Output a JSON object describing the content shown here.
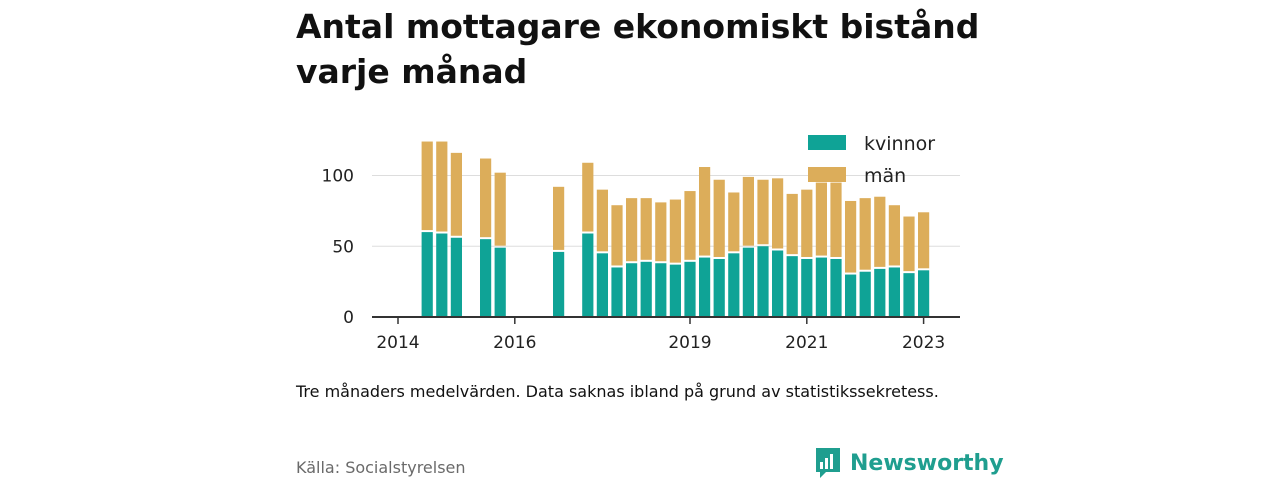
{
  "title": "Antal mottagare ekonomiskt bistånd varje månad",
  "note": "Tre månaders medelvärden. Data saknas ibland på grund av statistikssekretess.",
  "source": "Källa: Socialstyrelsen",
  "brand": "Newsworthy",
  "colors": {
    "kvinnor": "#0fa396",
    "man": "#dcad5a",
    "axis": "#333333",
    "grid": "#dddddd",
    "brand": "#1f9e8f"
  },
  "icons": {
    "brand_logo": "bar-chart-speech-bubble-icon"
  },
  "chart_data": {
    "type": "bar",
    "stacked": true,
    "x_tick_labels": [
      "2014",
      "2016",
      "2019",
      "2021",
      "2023"
    ],
    "y_tick_labels": [
      "0",
      "50",
      "100"
    ],
    "ylim": [
      0,
      120
    ],
    "grid": true,
    "legend_position": "top-right",
    "series": [
      {
        "name": "kvinnor",
        "values": [
          null,
          null,
          60,
          59,
          56,
          null,
          55,
          49,
          null,
          null,
          null,
          46,
          null,
          59,
          45,
          35,
          38,
          39,
          38,
          37,
          39,
          42,
          41,
          45,
          49,
          50,
          47,
          43,
          41,
          42,
          41,
          30,
          32,
          34,
          35,
          31,
          33
        ]
      },
      {
        "name": "män",
        "values": [
          null,
          null,
          64,
          65,
          60,
          null,
          57,
          53,
          null,
          null,
          null,
          46,
          null,
          50,
          45,
          44,
          46,
          45,
          43,
          46,
          50,
          64,
          56,
          43,
          50,
          47,
          51,
          44,
          49,
          53,
          54,
          52,
          52,
          51,
          44,
          40,
          41
        ]
      }
    ],
    "bar_index_ticks": {
      "2014": 0,
      "2016": 8,
      "2019": 20,
      "2021": 28,
      "2023": 36
    }
  }
}
